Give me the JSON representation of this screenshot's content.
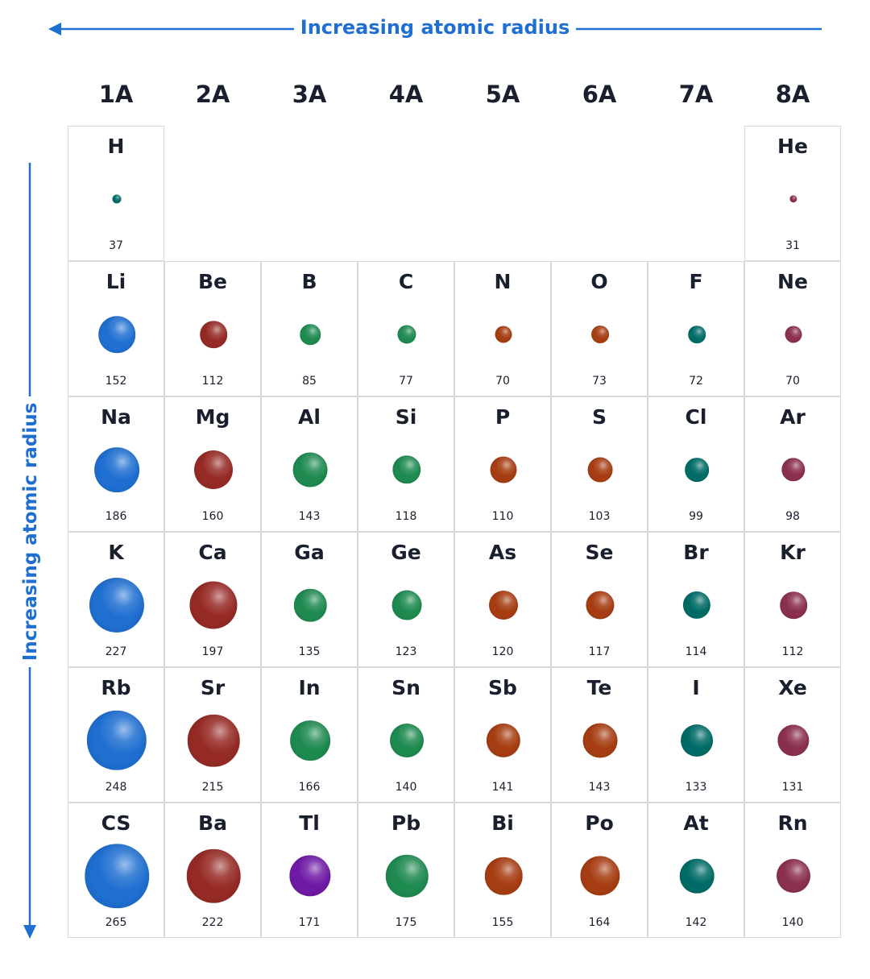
{
  "headers": {
    "top_label": "Increasing atomic radius",
    "side_label": "Increasing atomic radius"
  },
  "groups": [
    "1A",
    "2A",
    "3A",
    "4A",
    "5A",
    "6A",
    "7A",
    "8A"
  ],
  "colors": {
    "accent": "#1f6fd1",
    "alkali": "#1f6fd1",
    "alkaline": "#962a25",
    "boron_group": "#1e8a50",
    "carbon_group": "#1e8a50",
    "pnictogen": "#a63d12",
    "chalcogen": "#a63d12",
    "halogen": "#006b66",
    "noble": "#8a2f4f",
    "thallium": "#6f1aa5"
  },
  "elements": [
    {
      "symbol": "H",
      "radius": "37",
      "row": 0,
      "col": 0,
      "color": "#006b66"
    },
    {
      "symbol": "He",
      "radius": "31",
      "row": 0,
      "col": 7,
      "color": "#8a2f4f"
    },
    {
      "symbol": "Li",
      "radius": "152",
      "row": 1,
      "col": 0,
      "color": "#1f6fd1"
    },
    {
      "symbol": "Be",
      "radius": "112",
      "row": 1,
      "col": 1,
      "color": "#962a25"
    },
    {
      "symbol": "B",
      "radius": "85",
      "row": 1,
      "col": 2,
      "color": "#1e8a50"
    },
    {
      "symbol": "C",
      "radius": "77",
      "row": 1,
      "col": 3,
      "color": "#1e8a50"
    },
    {
      "symbol": "N",
      "radius": "70",
      "row": 1,
      "col": 4,
      "color": "#a63d12"
    },
    {
      "symbol": "O",
      "radius": "73",
      "row": 1,
      "col": 5,
      "color": "#a63d12"
    },
    {
      "symbol": "F",
      "radius": "72",
      "row": 1,
      "col": 6,
      "color": "#006b66"
    },
    {
      "symbol": "Ne",
      "radius": "70",
      "row": 1,
      "col": 7,
      "color": "#8a2f4f"
    },
    {
      "symbol": "Na",
      "radius": "186",
      "row": 2,
      "col": 0,
      "color": "#1f6fd1"
    },
    {
      "symbol": "Mg",
      "radius": "160",
      "row": 2,
      "col": 1,
      "color": "#962a25"
    },
    {
      "symbol": "Al",
      "radius": "143",
      "row": 2,
      "col": 2,
      "color": "#1e8a50"
    },
    {
      "symbol": "Si",
      "radius": "118",
      "row": 2,
      "col": 3,
      "color": "#1e8a50"
    },
    {
      "symbol": "P",
      "radius": "110",
      "row": 2,
      "col": 4,
      "color": "#a63d12"
    },
    {
      "symbol": "S",
      "radius": "103",
      "row": 2,
      "col": 5,
      "color": "#a63d12"
    },
    {
      "symbol": "Cl",
      "radius": "99",
      "row": 2,
      "col": 6,
      "color": "#006b66"
    },
    {
      "symbol": "Ar",
      "radius": "98",
      "row": 2,
      "col": 7,
      "color": "#8a2f4f"
    },
    {
      "symbol": "K",
      "radius": "227",
      "row": 3,
      "col": 0,
      "color": "#1f6fd1"
    },
    {
      "symbol": "Ca",
      "radius": "197",
      "row": 3,
      "col": 1,
      "color": "#962a25"
    },
    {
      "symbol": "Ga",
      "radius": "135",
      "row": 3,
      "col": 2,
      "color": "#1e8a50"
    },
    {
      "symbol": "Ge",
      "radius": "123",
      "row": 3,
      "col": 3,
      "color": "#1e8a50"
    },
    {
      "symbol": "As",
      "radius": "120",
      "row": 3,
      "col": 4,
      "color": "#a63d12"
    },
    {
      "symbol": "Se",
      "radius": "117",
      "row": 3,
      "col": 5,
      "color": "#a63d12"
    },
    {
      "symbol": "Br",
      "radius": "114",
      "row": 3,
      "col": 6,
      "color": "#006b66"
    },
    {
      "symbol": "Kr",
      "radius": "112",
      "row": 3,
      "col": 7,
      "color": "#8a2f4f"
    },
    {
      "symbol": "Rb",
      "radius": "248",
      "row": 4,
      "col": 0,
      "color": "#1f6fd1"
    },
    {
      "symbol": "Sr",
      "radius": "215",
      "row": 4,
      "col": 1,
      "color": "#962a25"
    },
    {
      "symbol": "In",
      "radius": "166",
      "row": 4,
      "col": 2,
      "color": "#1e8a50"
    },
    {
      "symbol": "Sn",
      "radius": "140",
      "row": 4,
      "col": 3,
      "color": "#1e8a50"
    },
    {
      "symbol": "Sb",
      "radius": "141",
      "row": 4,
      "col": 4,
      "color": "#a63d12"
    },
    {
      "symbol": "Te",
      "radius": "143",
      "row": 4,
      "col": 5,
      "color": "#a63d12"
    },
    {
      "symbol": "I",
      "radius": "133",
      "row": 4,
      "col": 6,
      "color": "#006b66"
    },
    {
      "symbol": "Xe",
      "radius": "131",
      "row": 4,
      "col": 7,
      "color": "#8a2f4f"
    },
    {
      "symbol": "CS",
      "radius": "265",
      "row": 5,
      "col": 0,
      "color": "#1f6fd1"
    },
    {
      "symbol": "Ba",
      "radius": "222",
      "row": 5,
      "col": 1,
      "color": "#962a25"
    },
    {
      "symbol": "Tl",
      "radius": "171",
      "row": 5,
      "col": 2,
      "color": "#6f1aa5"
    },
    {
      "symbol": "Pb",
      "radius": "175",
      "row": 5,
      "col": 3,
      "color": "#1e8a50"
    },
    {
      "symbol": "Bi",
      "radius": "155",
      "row": 5,
      "col": 4,
      "color": "#a63d12"
    },
    {
      "symbol": "Po",
      "radius": "164",
      "row": 5,
      "col": 5,
      "color": "#a63d12"
    },
    {
      "symbol": "At",
      "radius": "142",
      "row": 5,
      "col": 6,
      "color": "#006b66"
    },
    {
      "symbol": "Rn",
      "radius": "140",
      "row": 5,
      "col": 7,
      "color": "#8a2f4f"
    }
  ]
}
